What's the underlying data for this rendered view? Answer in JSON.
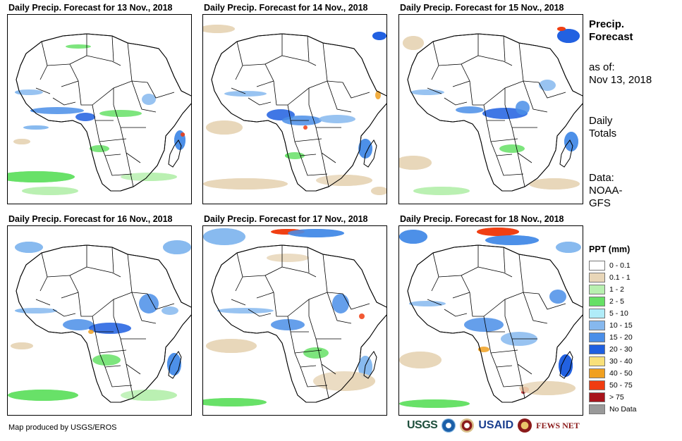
{
  "panels": [
    {
      "title": "Daily Precip. Forecast for 13 Nov., 2018"
    },
    {
      "title": "Daily Precip. Forecast for 14 Nov., 2018"
    },
    {
      "title": "Daily Precip. Forecast for 15 Nov., 2018"
    },
    {
      "title": "Daily Precip. Forecast for 16 Nov., 2018"
    },
    {
      "title": "Daily Precip. Forecast for 17 Nov., 2018"
    },
    {
      "title": "Daily Precip. Forecast for 18 Nov., 2018"
    }
  ],
  "sidebar": {
    "title_line1": "Precip.",
    "title_line2": "Forecast",
    "asof_label": "as of:",
    "asof_date": "Nov 13, 2018",
    "totals_line1": "Daily",
    "totals_line2": "Totals",
    "data_label": "Data:",
    "data_line1": "NOAA-",
    "data_line2": "GFS"
  },
  "legend": {
    "title": "PPT (mm)",
    "items": [
      {
        "label": "0 - 0.1",
        "color": "#ffffff"
      },
      {
        "label": "0.1 - 1",
        "color": "#e8d6b8"
      },
      {
        "label": "1 - 2",
        "color": "#b8f0b0"
      },
      {
        "label": "2 - 5",
        "color": "#66e066"
      },
      {
        "label": "5 - 10",
        "color": "#b0ecf8"
      },
      {
        "label": "10 - 15",
        "color": "#86b8ee"
      },
      {
        "label": "15 - 20",
        "color": "#4a8ee8"
      },
      {
        "label": "20 - 30",
        "color": "#1f5fe0"
      },
      {
        "label": "30 - 40",
        "color": "#f8e07a"
      },
      {
        "label": "40 - 50",
        "color": "#f0a020"
      },
      {
        "label": "50 - 75",
        "color": "#f03c10"
      },
      {
        "label": "> 75",
        "color": "#a8141c"
      },
      {
        "label": "No Data",
        "color": "#999999"
      }
    ]
  },
  "footer": {
    "credit": "Map produced by USGS/EROS",
    "usgs": "USGS",
    "usaid": "USAID",
    "fews": "FEWS NET"
  }
}
